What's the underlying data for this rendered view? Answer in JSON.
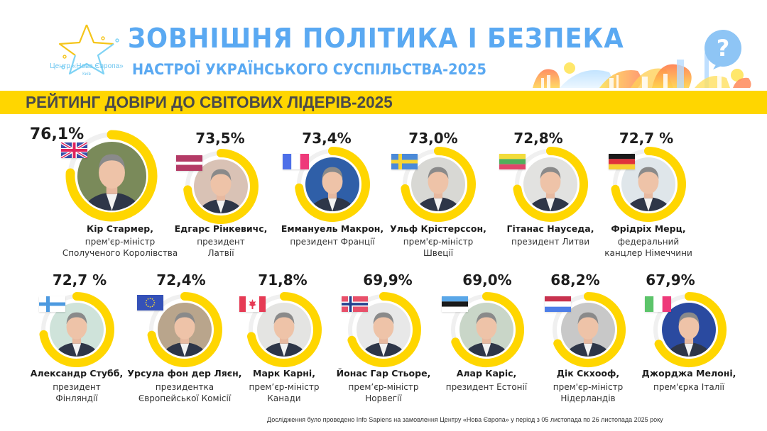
{
  "header": {
    "logo_text": "Центр «Нова Європа»",
    "logo_city": "Київ",
    "title": "ЗОВНІШНЯ ПОЛІТИКА І БЕЗПЕКА",
    "subtitle": "НАСТРОЇ УКРАЇНСЬКОГО СУСПІЛЬСТВА-2025",
    "question_icon_glyph": "?"
  },
  "banner": {
    "title": "РЕЙТИНГ ДОВІРИ ДО СВІТОВИХ ЛІДЕРІВ-2025"
  },
  "colors": {
    "accent_yellow": "#ffd600",
    "title_blue": "#5aa9f2",
    "track_grey": "#f0f0f0",
    "text_dark": "#1d1d1d"
  },
  "footnote": "Дослідження було проведено Info Sapiens на замовлення Центру «Нова Європа» у період з 05 листопада по 26 листопада 2025 року",
  "chart_data": {
    "type": "table",
    "title": "РЕЙТИНГ ДОВІРИ ДО СВІТОВИХ ЛІДЕРІВ-2025",
    "unit": "%",
    "max": 100,
    "leaders": [
      {
        "name": "Кір Стармер,",
        "role": [
          "прем'єр-міністр",
          "Сполученого Королівства"
        ],
        "value": 76.1,
        "label": "76,1%",
        "flag": "uk",
        "photo_tone": "#7a8a5a"
      },
      {
        "name": "Едгарс Рінкевичс,",
        "role": [
          "президент",
          "Латвії"
        ],
        "value": 73.5,
        "label": "73,5%",
        "flag": "latvia",
        "photo_tone": "#d9c2b5"
      },
      {
        "name": "Еммануель Макрон,",
        "role": [
          "президент Франції"
        ],
        "value": 73.4,
        "label": "73,4%",
        "flag": "france",
        "photo_tone": "#2f5fa8"
      },
      {
        "name": "Ульф Крістерссон,",
        "role": [
          "прем'єр-міністр",
          "Швеції"
        ],
        "value": 73.0,
        "label": "73,0%",
        "flag": "sweden",
        "photo_tone": "#d8d8d4"
      },
      {
        "name": "Гітанас Науседа,",
        "role": [
          "президент Литви"
        ],
        "value": 72.8,
        "label": "72,8%",
        "flag": "lithuania",
        "photo_tone": "#e2e2e0"
      },
      {
        "name": "Фрідріх Мерц,",
        "role": [
          "федеральний",
          "канцлер Німеччини"
        ],
        "value": 72.7,
        "label": "72,7 %",
        "flag": "germany",
        "photo_tone": "#dfe6ea"
      },
      {
        "name": "Александр Стубб,",
        "role": [
          "президент",
          "Фінляндії"
        ],
        "value": 72.7,
        "label": "72,7 %",
        "flag": "finland",
        "photo_tone": "#cfe3da"
      },
      {
        "name": "Урсула фон дер Ляєн,",
        "role": [
          "президентка",
          "Європейської Комісії"
        ],
        "value": 72.4,
        "label": "72,4%",
        "flag": "eu",
        "photo_tone": "#b9a58c"
      },
      {
        "name": "Марк Карні,",
        "role": [
          "прем’єр-міністр",
          "Канади"
        ],
        "value": 71.8,
        "label": "71,8%",
        "flag": "canada",
        "photo_tone": "#e4e4e2"
      },
      {
        "name": "Йонас Гар Стьоре,",
        "role": [
          "прем’єр-міністр",
          "Норвегії"
        ],
        "value": 69.9,
        "label": "69,9%",
        "flag": "norway",
        "photo_tone": "#e8e8e8"
      },
      {
        "name": "Алар Каріс,",
        "role": [
          "президент Естонії"
        ],
        "value": 69.0,
        "label": "69,0%",
        "flag": "estonia",
        "photo_tone": "#c9d6c8"
      },
      {
        "name": "Дік Скхооф,",
        "role": [
          "прем'єр-міністр",
          "Нідерландів"
        ],
        "value": 68.2,
        "label": "68,2%",
        "flag": "netherlands",
        "photo_tone": "#c8c8c8"
      },
      {
        "name": "Джорджа Мелоні,",
        "role": [
          "прем'єрка Італії"
        ],
        "value": 67.9,
        "label": "67,9%",
        "flag": "italy",
        "photo_tone": "#2a4aa0"
      }
    ]
  }
}
